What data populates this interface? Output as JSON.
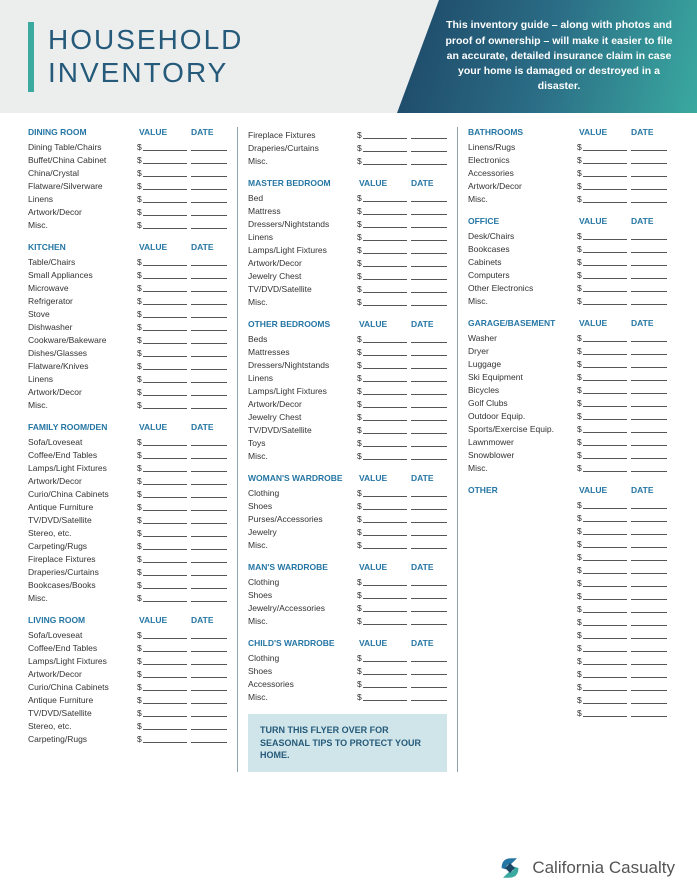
{
  "title_line1": "HOUSEHOLD",
  "title_line2": "INVENTORY",
  "blurb": "This inventory guide – along with photos and proof of ownership – will make it easier to file an accurate, detailed insurance claim in case your home is damaged or destroyed in a disaster.",
  "value_label": "VALUE",
  "date_label": "DATE",
  "dollar": "$",
  "tip": "TURN THIS FLYER OVER FOR SEASONAL TIPS TO PROTECT YOUR HOME.",
  "logo_text": "California Casualty",
  "columns": [
    [
      {
        "title": "DINING ROOM",
        "items": [
          "Dining Table/Chairs",
          "Buffet/China Cabinet",
          "China/Crystal",
          "Flatware/Silverware",
          "Linens",
          "Artwork/Decor",
          "Misc."
        ]
      },
      {
        "title": "KITCHEN",
        "items": [
          "Table/Chairs",
          "Small Appliances",
          "Microwave",
          "Refrigerator",
          "Stove",
          "Dishwasher",
          "Cookware/Bakeware",
          "Dishes/Glasses",
          "Flatware/Knives",
          "Linens",
          "Artwork/Decor",
          "Misc."
        ]
      },
      {
        "title": "FAMILY ROOM/DEN",
        "items": [
          "Sofa/Loveseat",
          "Coffee/End Tables",
          "Lamps/Light Fixtures",
          "Artwork/Decor",
          "Curio/China Cabinets",
          "Antique Furniture",
          "TV/DVD/Satellite",
          "Stereo, etc.",
          "Carpeting/Rugs",
          "Fireplace Fixtures",
          "Draperies/Curtains",
          "Bookcases/Books",
          "Misc."
        ]
      },
      {
        "title": "LIVING ROOM",
        "items": [
          "Sofa/Loveseat",
          "Coffee/End Tables",
          "Lamps/Light Fixtures",
          "Artwork/Decor",
          "Curio/China Cabinets",
          "Antique Furniture",
          "TV/DVD/Satellite",
          "Stereo, etc.",
          "Carpeting/Rugs"
        ]
      }
    ],
    [
      {
        "title": "",
        "items": [
          "Fireplace Fixtures",
          "Draperies/Curtains",
          "Misc."
        ]
      },
      {
        "title": "MASTER BEDROOM",
        "items": [
          "Bed",
          "Mattress",
          "Dressers/Nightstands",
          "Linens",
          "Lamps/Light Fixtures",
          "Artwork/Decor",
          "Jewelry Chest",
          "TV/DVD/Satellite",
          "Misc."
        ]
      },
      {
        "title": "OTHER BEDROOMS",
        "items": [
          "Beds",
          "Mattresses",
          "Dressers/Nightstands",
          "Linens",
          "Lamps/Light Fixtures",
          "Artwork/Decor",
          "Jewelry Chest",
          "TV/DVD/Satellite",
          "Toys",
          "Misc."
        ]
      },
      {
        "title": "WOMAN'S WARDROBE",
        "items": [
          "Clothing",
          "Shoes",
          "Purses/Accessories",
          "Jewelry",
          "Misc."
        ]
      },
      {
        "title": "MAN'S WARDROBE",
        "items": [
          "Clothing",
          "Shoes",
          "Jewelry/Accessories",
          "Misc."
        ]
      },
      {
        "title": "CHILD'S WARDROBE",
        "items": [
          "Clothing",
          "Shoes",
          "Accessories",
          "Misc."
        ]
      }
    ],
    [
      {
        "title": "BATHROOMS",
        "items": [
          "Linens/Rugs",
          "Electronics",
          "Accessories",
          "Artwork/Decor",
          "Misc."
        ]
      },
      {
        "title": "OFFICE",
        "items": [
          "Desk/Chairs",
          "Bookcases",
          "Cabinets",
          "Computers",
          "Other Electronics",
          "Misc."
        ]
      },
      {
        "title": "GARAGE/BASEMENT",
        "items": [
          "Washer",
          "Dryer",
          "Luggage",
          "Ski Equipment",
          "Bicycles",
          "Golf Clubs",
          "Outdoor Equip.",
          "Sports/Exercise Equip.",
          "Lawnmower",
          "Snowblower",
          "Misc."
        ]
      },
      {
        "title": "OTHER",
        "items": [
          "",
          "",
          "",
          "",
          "",
          "",
          "",
          "",
          "",
          "",
          "",
          "",
          "",
          "",
          "",
          "",
          ""
        ]
      }
    ]
  ]
}
